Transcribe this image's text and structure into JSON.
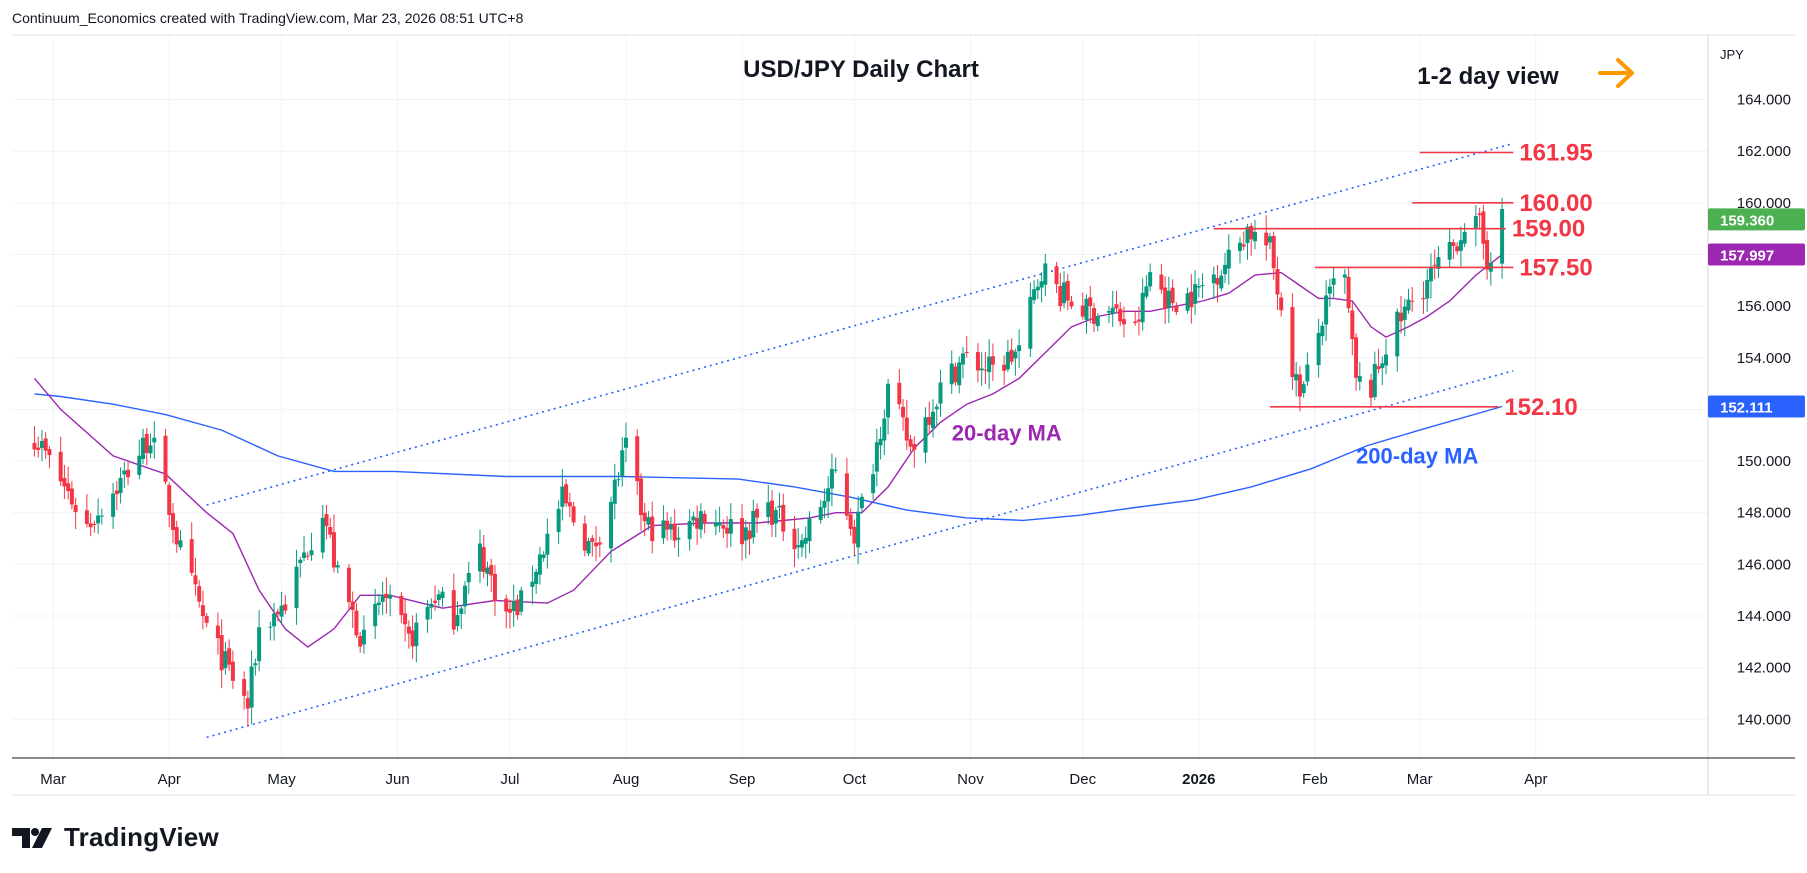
{
  "header": {
    "attribution": "Continuum_Economics created with TradingView.com, Mar 23, 2026 08:51 UTC+8"
  },
  "brand": {
    "name": "TradingView"
  },
  "colors": {
    "up": "#089981",
    "down": "#f23645",
    "ma20": "#9c27b0",
    "ma200": "#2962ff",
    "channel": "#2962ff",
    "level_text": "#f23645",
    "arrow": "#ff9800",
    "price_badge": "#4caf50",
    "ma20_badge": "#9c27b0",
    "ma200_badge": "#2962ff"
  },
  "chart_data": {
    "type": "candlestick",
    "title": "USD/JPY Daily Chart",
    "view_label": "1-2 day view",
    "currency": "JPY",
    "ylim": [
      138.5,
      166.5
    ],
    "y_ticks": [
      "140.000",
      "142.000",
      "144.000",
      "146.000",
      "148.000",
      "150.000",
      "152.000",
      "154.000",
      "156.000",
      "158.000",
      "160.000",
      "162.000",
      "164.000"
    ],
    "x_ticks": [
      "Mar",
      "Apr",
      "May",
      "Jun",
      "Jul",
      "Aug",
      "Sep",
      "Oct",
      "Nov",
      "Dec",
      "2026",
      "Feb",
      "Mar",
      "Apr"
    ],
    "price_badges": [
      {
        "label": "159.360",
        "value": 159.36,
        "color": "price_badge"
      },
      {
        "label": "157.997",
        "value": 157.997,
        "color": "ma20_badge"
      },
      {
        "label": "152.111",
        "value": 152.111,
        "color": "ma200_badge"
      }
    ],
    "levels": [
      {
        "label": "161.95",
        "value": 161.95,
        "from": "2026-03-01",
        "to": "2026-03-26"
      },
      {
        "label": "160.00",
        "value": 160.0,
        "from": "2026-02-27",
        "to": "2026-03-26"
      },
      {
        "label": "159.00",
        "value": 159.0,
        "from": "2026-01-05",
        "to": "2026-03-24"
      },
      {
        "label": "157.50",
        "value": 157.5,
        "from": "2026-02-01",
        "to": "2026-03-26"
      },
      {
        "label": "152.10",
        "value": 152.1,
        "from": "2026-01-20",
        "to": "2026-03-22"
      }
    ],
    "annotations": [
      {
        "text": "20-day MA",
        "color": "ma20"
      },
      {
        "text": "200-day MA",
        "color": "ma200"
      }
    ],
    "channel": {
      "upper": [
        [
          "2025-04-11",
          148.3
        ],
        [
          "2026-03-26",
          162.3
        ]
      ],
      "lower": [
        [
          "2025-04-11",
          139.3
        ],
        [
          "2026-03-26",
          153.5
        ]
      ]
    },
    "anchors": [
      [
        "2025-02-24",
        151.0
      ],
      [
        "2025-03-10",
        147.5
      ],
      [
        "2025-03-19",
        149.2
      ],
      [
        "2025-03-27",
        151.0
      ],
      [
        "2025-04-04",
        146.5
      ],
      [
        "2025-04-11",
        143.5
      ],
      [
        "2025-04-22",
        140.5
      ],
      [
        "2025-04-25",
        143.5
      ],
      [
        "2025-05-02",
        144.5
      ],
      [
        "2025-05-12",
        148.2
      ],
      [
        "2025-05-16",
        145.5
      ],
      [
        "2025-05-23",
        143.0
      ],
      [
        "2025-05-28",
        144.8
      ],
      [
        "2025-06-04",
        143.0
      ],
      [
        "2025-06-11",
        144.8
      ],
      [
        "2025-06-16",
        144.0
      ],
      [
        "2025-06-23",
        146.5
      ],
      [
        "2025-06-30",
        144.0
      ],
      [
        "2025-07-04",
        144.5
      ],
      [
        "2025-07-15",
        148.5
      ],
      [
        "2025-07-23",
        146.5
      ],
      [
        "2025-07-28",
        148.5
      ],
      [
        "2025-08-01",
        150.5
      ],
      [
        "2025-08-06",
        147.5
      ],
      [
        "2025-08-14",
        147.2
      ],
      [
        "2025-08-22",
        148.0
      ],
      [
        "2025-09-01",
        147.2
      ],
      [
        "2025-09-08",
        148.2
      ],
      [
        "2025-09-17",
        146.8
      ],
      [
        "2025-09-26",
        149.5
      ],
      [
        "2025-10-01",
        147.2
      ],
      [
        "2025-10-06",
        150.0
      ],
      [
        "2025-10-10",
        152.8
      ],
      [
        "2025-10-16",
        150.5
      ],
      [
        "2025-10-24",
        152.8
      ],
      [
        "2025-10-30",
        154.0
      ],
      [
        "2025-11-07",
        153.5
      ],
      [
        "2025-11-14",
        154.3
      ],
      [
        "2025-11-20",
        157.5
      ],
      [
        "2025-11-25",
        156.5
      ],
      [
        "2025-12-02",
        155.8
      ],
      [
        "2025-12-09",
        155.8
      ],
      [
        "2025-12-15",
        155.0
      ],
      [
        "2025-12-19",
        157.3
      ],
      [
        "2025-12-24",
        156.2
      ],
      [
        "2025-12-31",
        156.5
      ],
      [
        "2026-01-09",
        157.8
      ],
      [
        "2026-01-14",
        159.0
      ],
      [
        "2026-01-20",
        158.2
      ],
      [
        "2026-01-23",
        156.0
      ],
      [
        "2026-01-27",
        153.0
      ],
      [
        "2026-01-29",
        152.8
      ],
      [
        "2026-02-03",
        155.5
      ],
      [
        "2026-02-06",
        156.8
      ],
      [
        "2026-02-09",
        157.0
      ],
      [
        "2026-02-12",
        153.0
      ],
      [
        "2026-02-16",
        152.8
      ],
      [
        "2026-02-20",
        154.5
      ],
      [
        "2026-02-26",
        156.0
      ],
      [
        "2026-03-03",
        157.0
      ],
      [
        "2026-03-09",
        158.0
      ],
      [
        "2026-03-13",
        159.2
      ],
      [
        "2026-03-17",
        159.0
      ],
      [
        "2026-03-19",
        157.8
      ],
      [
        "2026-03-23",
        159.36
      ]
    ],
    "ma20": [
      [
        "2025-02-24",
        153.2
      ],
      [
        "2025-03-03",
        152.0
      ],
      [
        "2025-03-17",
        150.2
      ],
      [
        "2025-03-31",
        149.5
      ],
      [
        "2025-04-11",
        148.0
      ],
      [
        "2025-04-18",
        147.2
      ],
      [
        "2025-04-25",
        145.0
      ],
      [
        "2025-05-02",
        143.5
      ],
      [
        "2025-05-08",
        142.8
      ],
      [
        "2025-05-15",
        143.5
      ],
      [
        "2025-05-22",
        144.8
      ],
      [
        "2025-05-30",
        144.8
      ],
      [
        "2025-06-13",
        144.3
      ],
      [
        "2025-06-27",
        144.6
      ],
      [
        "2025-07-11",
        144.5
      ],
      [
        "2025-07-18",
        145.0
      ],
      [
        "2025-07-28",
        146.5
      ],
      [
        "2025-08-08",
        147.5
      ],
      [
        "2025-08-22",
        147.6
      ],
      [
        "2025-09-05",
        147.6
      ],
      [
        "2025-09-19",
        147.8
      ],
      [
        "2025-09-26",
        148.0
      ],
      [
        "2025-10-03",
        148.0
      ],
      [
        "2025-10-10",
        149.0
      ],
      [
        "2025-10-17",
        150.5
      ],
      [
        "2025-10-24",
        151.5
      ],
      [
        "2025-10-31",
        152.2
      ],
      [
        "2025-11-07",
        152.6
      ],
      [
        "2025-11-14",
        153.2
      ],
      [
        "2025-11-21",
        154.2
      ],
      [
        "2025-11-28",
        155.2
      ],
      [
        "2025-12-05",
        155.6
      ],
      [
        "2025-12-12",
        155.8
      ],
      [
        "2025-12-19",
        155.8
      ],
      [
        "2025-12-26",
        156.0
      ],
      [
        "2026-01-02",
        156.2
      ],
      [
        "2026-01-09",
        156.5
      ],
      [
        "2026-01-16",
        157.2
      ],
      [
        "2026-01-23",
        157.3
      ],
      [
        "2026-01-28",
        156.8
      ],
      [
        "2026-02-02",
        156.3
      ],
      [
        "2026-02-06",
        156.3
      ],
      [
        "2026-02-11",
        156.2
      ],
      [
        "2026-02-16",
        155.2
      ],
      [
        "2026-02-20",
        154.8
      ],
      [
        "2026-02-26",
        155.2
      ],
      [
        "2026-03-03",
        155.6
      ],
      [
        "2026-03-09",
        156.2
      ],
      [
        "2026-03-16",
        157.2
      ],
      [
        "2026-03-23",
        157.997
      ]
    ],
    "ma200": [
      [
        "2025-02-24",
        152.6
      ],
      [
        "2025-03-03",
        152.5
      ],
      [
        "2025-03-17",
        152.2
      ],
      [
        "2025-03-31",
        151.8
      ],
      [
        "2025-04-15",
        151.2
      ],
      [
        "2025-04-30",
        150.2
      ],
      [
        "2025-05-15",
        149.6
      ],
      [
        "2025-05-31",
        149.6
      ],
      [
        "2025-06-30",
        149.4
      ],
      [
        "2025-07-31",
        149.4
      ],
      [
        "2025-08-31",
        149.3
      ],
      [
        "2025-09-15",
        149.0
      ],
      [
        "2025-09-30",
        148.6
      ],
      [
        "2025-10-15",
        148.1
      ],
      [
        "2025-10-31",
        147.8
      ],
      [
        "2025-11-15",
        147.7
      ],
      [
        "2025-11-30",
        147.9
      ],
      [
        "2025-12-15",
        148.2
      ],
      [
        "2025-12-31",
        148.5
      ],
      [
        "2026-01-15",
        149.0
      ],
      [
        "2026-01-31",
        149.7
      ],
      [
        "2026-02-15",
        150.6
      ],
      [
        "2026-03-01",
        151.2
      ],
      [
        "2026-03-23",
        152.111
      ]
    ]
  }
}
